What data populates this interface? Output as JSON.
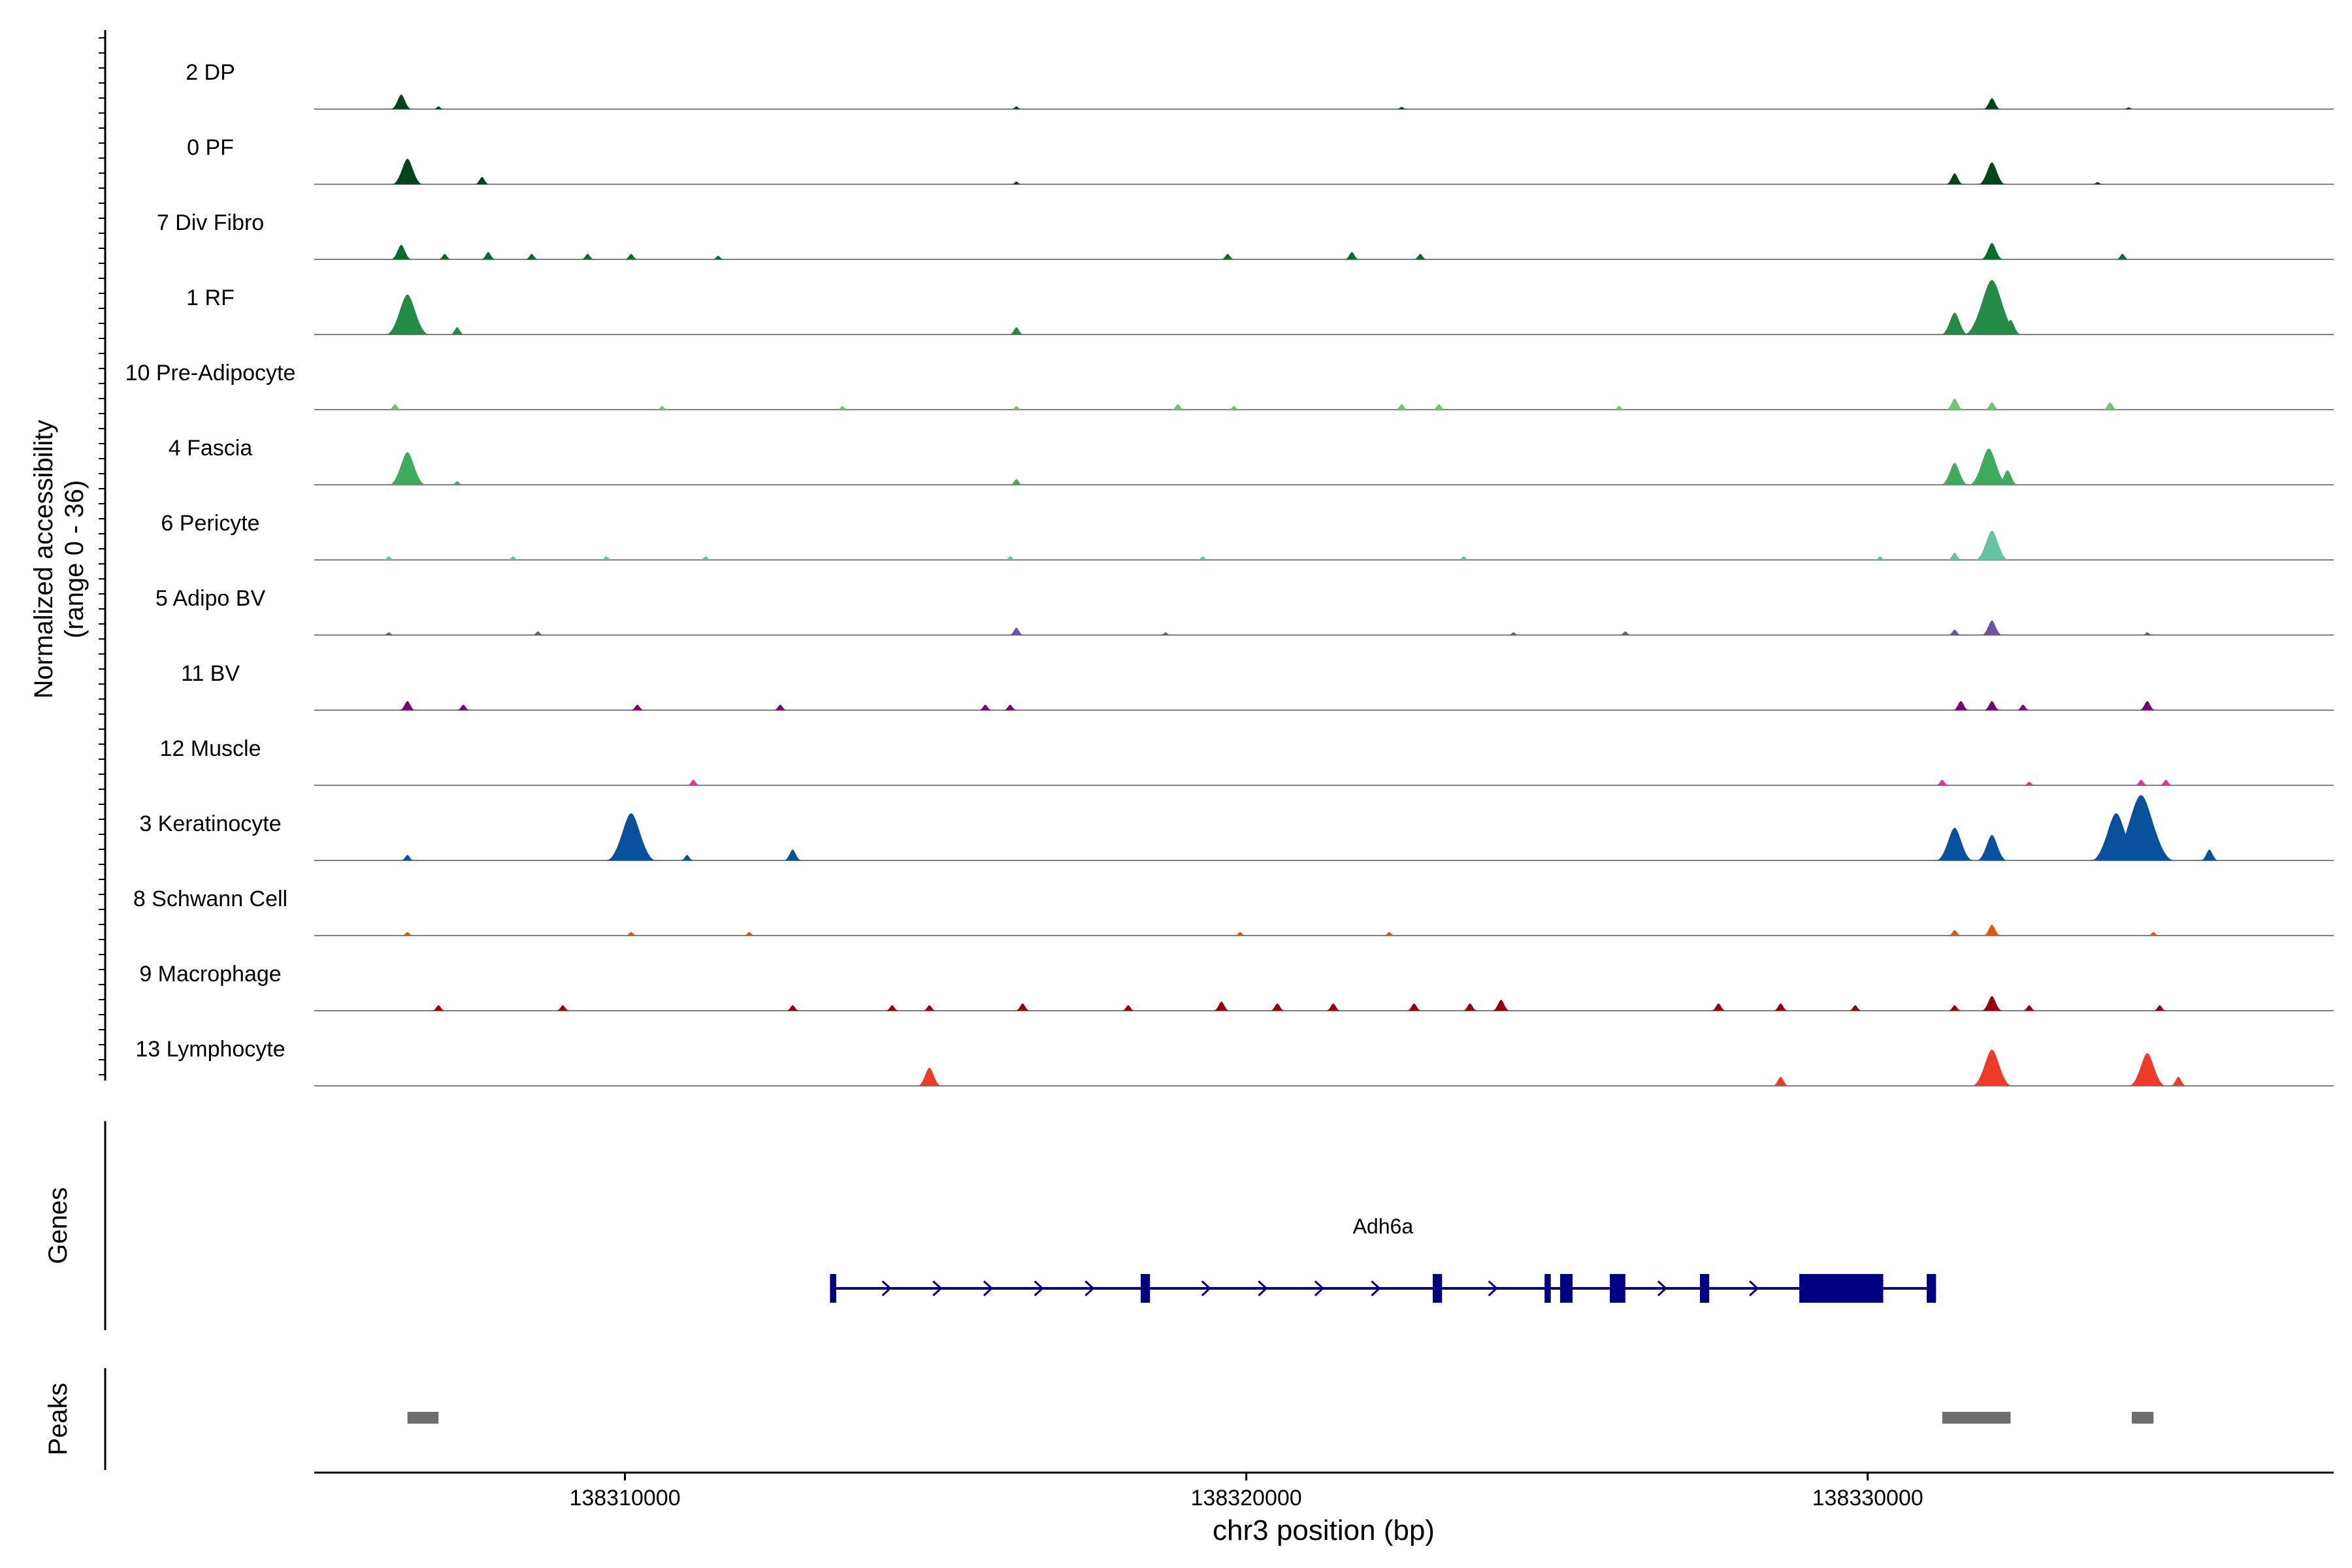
{
  "chart_data": {
    "type": "area",
    "chromosome": "chr3",
    "xlim": [
      138305000,
      138337500
    ],
    "xlabel": "chr3 position (bp)",
    "xticks": [
      138310000,
      138320000,
      138330000
    ],
    "y_axis_label_line1": "Normalized accessibility",
    "y_axis_label_line2": "(range 0 - 36)",
    "ylim": [
      0,
      36
    ],
    "tracks": [
      {
        "name": "2 DP",
        "color": "#00441b",
        "peaks": [
          [
            138306400,
            8
          ],
          [
            138307000,
            1.5
          ],
          [
            138316300,
            1.5
          ],
          [
            138322500,
            1.2
          ],
          [
            138332000,
            6
          ],
          [
            138334200,
            1
          ]
        ]
      },
      {
        "name": "0 PF",
        "color": "#00441b",
        "peaks": [
          [
            138306500,
            14
          ],
          [
            138307700,
            4
          ],
          [
            138316300,
            1.5
          ],
          [
            138331400,
            6
          ],
          [
            138332000,
            12
          ],
          [
            138333700,
            1.2
          ]
        ]
      },
      {
        "name": "7 Div Fibro",
        "color": "#006d2c",
        "peaks": [
          [
            138306400,
            8
          ],
          [
            138307100,
            3
          ],
          [
            138307800,
            4
          ],
          [
            138308500,
            3
          ],
          [
            138309400,
            3
          ],
          [
            138310100,
            3
          ],
          [
            138311500,
            2
          ],
          [
            138319700,
            3
          ],
          [
            138321700,
            4
          ],
          [
            138322800,
            3
          ],
          [
            138332000,
            9
          ],
          [
            138334100,
            3
          ]
        ]
      },
      {
        "name": "1 RF",
        "color": "#238b45",
        "peaks": [
          [
            138306500,
            22
          ],
          [
            138307300,
            4
          ],
          [
            138316300,
            4
          ],
          [
            138331400,
            12
          ],
          [
            138332000,
            30
          ],
          [
            138332300,
            8
          ]
        ]
      },
      {
        "name": "10 Pre-Adipocyte",
        "color": "#74c476",
        "peaks": [
          [
            138306300,
            3
          ],
          [
            138310600,
            2
          ],
          [
            138313500,
            2
          ],
          [
            138316300,
            2
          ],
          [
            138318900,
            3
          ],
          [
            138319800,
            2
          ],
          [
            138322500,
            3
          ],
          [
            138323100,
            3
          ],
          [
            138326000,
            2
          ],
          [
            138331400,
            6
          ],
          [
            138332000,
            4
          ],
          [
            138333900,
            4
          ]
        ]
      },
      {
        "name": "4 Fascia",
        "color": "#41ab5d",
        "peaks": [
          [
            138306500,
            18
          ],
          [
            138307300,
            2
          ],
          [
            138316300,
            3
          ],
          [
            138331400,
            12
          ],
          [
            138331950,
            20
          ],
          [
            138332250,
            8
          ]
        ]
      },
      {
        "name": "6 Pericyte",
        "color": "#66c2a4",
        "peaks": [
          [
            138306200,
            2
          ],
          [
            138308200,
            2
          ],
          [
            138309700,
            2
          ],
          [
            138311300,
            2
          ],
          [
            138316200,
            2
          ],
          [
            138319300,
            2
          ],
          [
            138323500,
            2
          ],
          [
            138330200,
            2
          ],
          [
            138331400,
            4
          ],
          [
            138332000,
            16
          ]
        ]
      },
      {
        "name": "5 Adipo BV",
        "color": "#6a51a3",
        "peaks": [
          [
            138306200,
            1.5
          ],
          [
            138308600,
            2
          ],
          [
            138316300,
            4
          ],
          [
            138318700,
            1.5
          ],
          [
            138324300,
            1.5
          ],
          [
            138326100,
            2
          ],
          [
            138331400,
            3
          ],
          [
            138332000,
            8
          ],
          [
            138334500,
            1.5
          ]
        ]
      },
      {
        "name": "11 BV",
        "color": "#7a0177",
        "peaks": [
          [
            138306500,
            5
          ],
          [
            138307400,
            3
          ],
          [
            138310200,
            3
          ],
          [
            138312500,
            3
          ],
          [
            138315800,
            3
          ],
          [
            138316200,
            3
          ],
          [
            138331500,
            5
          ],
          [
            138332000,
            5
          ],
          [
            138332500,
            3
          ],
          [
            138334500,
            5
          ]
        ]
      },
      {
        "name": "12 Muscle",
        "color": "#dd3497",
        "peaks": [
          [
            138311100,
            3
          ],
          [
            138331200,
            3
          ],
          [
            138332600,
            2
          ],
          [
            138334400,
            3
          ],
          [
            138334800,
            3
          ]
        ]
      },
      {
        "name": "3 Keratinocyte",
        "color": "#08519c",
        "peaks": [
          [
            138306500,
            3
          ],
          [
            138310100,
            26
          ],
          [
            138311000,
            3
          ],
          [
            138312700,
            6
          ],
          [
            138331400,
            18
          ],
          [
            138332000,
            14
          ],
          [
            138334000,
            26
          ],
          [
            138334400,
            36
          ],
          [
            138335500,
            6
          ]
        ]
      },
      {
        "name": "8 Schwann Cell",
        "color": "#e6550d",
        "peaks": [
          [
            138306500,
            2
          ],
          [
            138310100,
            2
          ],
          [
            138312000,
            2
          ],
          [
            138319900,
            2
          ],
          [
            138322300,
            2
          ],
          [
            138331400,
            3
          ],
          [
            138332000,
            6
          ],
          [
            138334600,
            2
          ]
        ]
      },
      {
        "name": "9 Macrophage",
        "color": "#99000d",
        "peaks": [
          [
            138307000,
            3
          ],
          [
            138309000,
            3
          ],
          [
            138312700,
            3
          ],
          [
            138314300,
            3
          ],
          [
            138314900,
            3
          ],
          [
            138316400,
            4
          ],
          [
            138318100,
            3
          ],
          [
            138319600,
            5
          ],
          [
            138320500,
            4
          ],
          [
            138321400,
            4
          ],
          [
            138322700,
            4
          ],
          [
            138323600,
            4
          ],
          [
            138324100,
            6
          ],
          [
            138327600,
            4
          ],
          [
            138328600,
            4
          ],
          [
            138329800,
            3
          ],
          [
            138331400,
            3
          ],
          [
            138332000,
            8
          ],
          [
            138332600,
            3
          ],
          [
            138334700,
            3
          ]
        ]
      },
      {
        "name": "13 Lymphocyte",
        "color": "#ef3b2c",
        "peaks": [
          [
            138314900,
            10
          ],
          [
            138328600,
            5
          ],
          [
            138332000,
            20
          ],
          [
            138334500,
            18
          ],
          [
            138335000,
            5
          ]
        ]
      }
    ],
    "gene": {
      "name": "Adh6a",
      "start": 138313300,
      "end": 138331100,
      "strand": "+",
      "color": "#000080",
      "exons": [
        [
          138313300,
          138313400
        ],
        [
          138318300,
          138318450
        ],
        [
          138323000,
          138323150
        ],
        [
          138324800,
          138324900
        ],
        [
          138325050,
          138325250
        ],
        [
          138325850,
          138326100
        ],
        [
          138327300,
          138327450
        ],
        [
          138328900,
          138330250
        ],
        [
          138330950,
          138331100
        ]
      ]
    },
    "peaks_track": {
      "label": "Peaks",
      "color": "#6e6e6e",
      "regions": [
        [
          138306500,
          138307000
        ],
        [
          138331200,
          138332300
        ],
        [
          138334250,
          138334600
        ]
      ]
    },
    "genes_track_label": "Genes"
  }
}
